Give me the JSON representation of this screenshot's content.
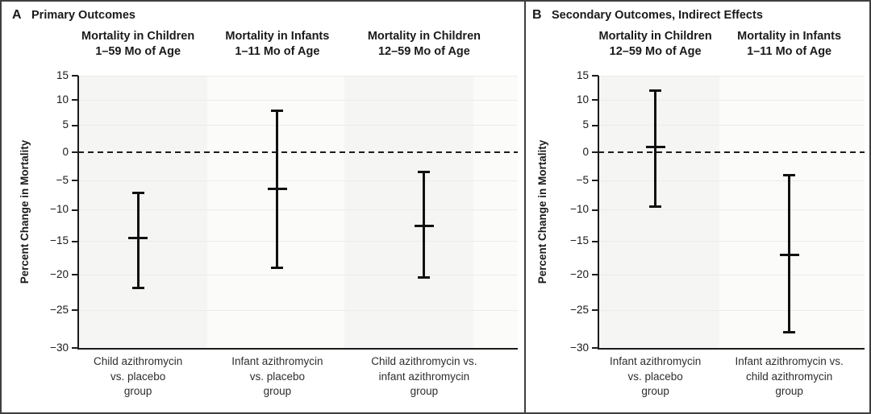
{
  "chart_data": {
    "type": "errorbar",
    "ylabel": "Percent Change in Mortality",
    "yticks": [
      15,
      10,
      5,
      0,
      -5,
      -10,
      -15,
      -20,
      -25,
      -30
    ],
    "ylim": [
      -30,
      15
    ],
    "yscale": "log-ratio (percent change plotted as log(1 + y/100))",
    "zero_reference_line": "dashed at 0",
    "grid": "faint horizontal gridlines at each tick",
    "legend_position": "none",
    "panels": [
      {
        "label": "A",
        "title": "Primary Outcomes",
        "series": [
          {
            "column_header": [
              "Mortality in Children",
              "1–59 Mo of Age"
            ],
            "x_label": [
              "Child azithromycin",
              "vs. placebo",
              "group"
            ],
            "point_estimate": -14.5,
            "ci": [
              -22,
              -7
            ]
          },
          {
            "column_header": [
              "Mortality in Infants",
              "1–11 Mo of Age"
            ],
            "x_label": [
              "Infant azithromycin",
              "vs. placebo",
              "group"
            ],
            "point_estimate": -6.5,
            "ci": [
              -19,
              8
            ]
          },
          {
            "column_header": [
              "Mortality in Children",
              "12–59 Mo of Age"
            ],
            "x_label": [
              "Child azithromycin vs.",
              "infant azithromycin",
              "group"
            ],
            "point_estimate": -12.5,
            "ci": [
              -20.5,
              -3.5
            ]
          }
        ]
      },
      {
        "label": "B",
        "title": "Secondary Outcomes, Indirect Effects",
        "series": [
          {
            "column_header": [
              "Mortality in Children",
              "12–59 Mo of Age"
            ],
            "x_label": [
              "Infant azithromycin",
              "vs. placebo",
              "group"
            ],
            "point_estimate": 1,
            "ci": [
              -9.5,
              12
            ]
          },
          {
            "column_header": [
              "Mortality in Infants",
              "1–11 Mo of Age"
            ],
            "x_label": [
              "Infant azithromycin vs.",
              "child azithromycin",
              "group"
            ],
            "point_estimate": -17,
            "ci": [
              -28,
              -4
            ]
          }
        ]
      }
    ],
    "colors": {
      "bar": "#111111",
      "band_gray": "#f5f5f4",
      "band_light": "#fbfbfa",
      "gridline": "#ebebeb",
      "border": "#3f3f3f",
      "text": "#1a1a1a"
    }
  }
}
